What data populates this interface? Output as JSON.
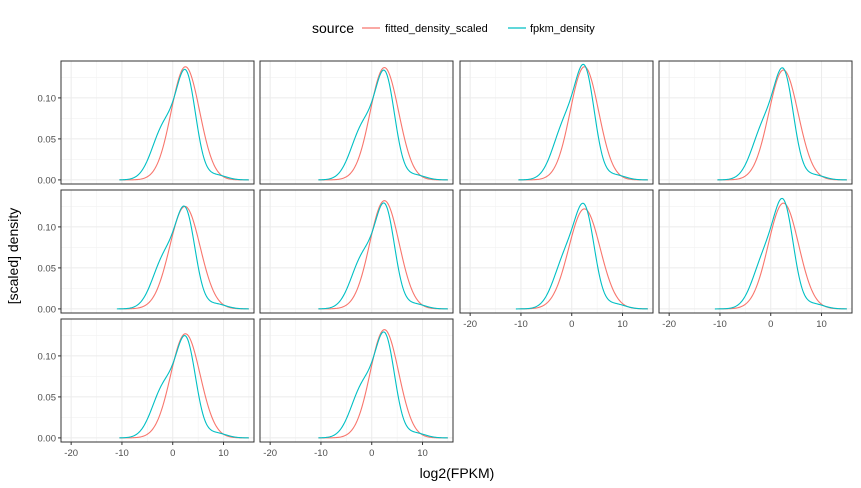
{
  "chart_data": {
    "type": "line",
    "layout": "facet-grid",
    "xlabel": "log2(FPKM)",
    "ylabel": "[scaled] density",
    "xlim": [
      -22,
      16
    ],
    "ylim": [
      -0.005,
      0.145
    ],
    "x_ticks": [
      -20,
      -10,
      0,
      10
    ],
    "x_tick_labels": [
      "-20",
      "-10",
      "0",
      "10"
    ],
    "y_ticks": [
      0.0,
      0.05,
      0.1
    ],
    "y_tick_labels": [
      "0.00",
      "0.05",
      "0.10"
    ],
    "grid": true,
    "legend": {
      "title": "source",
      "position": "top",
      "entries": [
        {
          "label": "fitted_density_scaled",
          "color": "#F8766D"
        },
        {
          "label": "fpkm_density",
          "color": "#00BFC4"
        }
      ]
    },
    "facets": [
      {
        "peak_x": 2.5,
        "peak_y": 0.138,
        "fitted_sd": 2.8,
        "fpkm_shoulder_x": -1.6,
        "fpkm_shoulder_y": 0.083,
        "fpkm_start_x": -10.5
      },
      {
        "peak_x": 2.5,
        "peak_y": 0.137,
        "fitted_sd": 2.8,
        "fpkm_shoulder_x": -1.6,
        "fpkm_shoulder_y": 0.083,
        "fpkm_start_x": -10.5
      },
      {
        "peak_x": 2.5,
        "peak_y": 0.138,
        "fitted_sd": 2.8,
        "fpkm_shoulder_x": -1.2,
        "fpkm_shoulder_y": 0.087,
        "fpkm_start_x": -10.5
      },
      {
        "peak_x": 2.5,
        "peak_y": 0.134,
        "fitted_sd": 2.9,
        "fpkm_shoulder_x": -1.2,
        "fpkm_shoulder_y": 0.084,
        "fpkm_start_x": -10.5
      },
      {
        "peak_x": 2.4,
        "peak_y": 0.125,
        "fitted_sd": 3.0,
        "fpkm_shoulder_x": -1.5,
        "fpkm_shoulder_y": 0.08,
        "fpkm_start_x": -11.0
      },
      {
        "peak_x": 2.5,
        "peak_y": 0.132,
        "fitted_sd": 2.9,
        "fpkm_shoulder_x": -1.6,
        "fpkm_shoulder_y": 0.081,
        "fpkm_start_x": -10.5
      },
      {
        "peak_x": 2.5,
        "peak_y": 0.122,
        "fitted_sd": 3.1,
        "fpkm_shoulder_x": -1.0,
        "fpkm_shoulder_y": 0.082,
        "fpkm_start_x": -11.0
      },
      {
        "peak_x": 2.5,
        "peak_y": 0.129,
        "fitted_sd": 3.0,
        "fpkm_shoulder_x": -1.0,
        "fpkm_shoulder_y": 0.082,
        "fpkm_start_x": -11.0
      },
      {
        "peak_x": 2.5,
        "peak_y": 0.127,
        "fitted_sd": 2.9,
        "fpkm_shoulder_x": -1.6,
        "fpkm_shoulder_y": 0.08,
        "fpkm_start_x": -10.5
      },
      {
        "peak_x": 2.5,
        "peak_y": 0.132,
        "fitted_sd": 2.8,
        "fpkm_shoulder_x": -1.6,
        "fpkm_shoulder_y": 0.081,
        "fpkm_start_x": -10.5
      }
    ]
  }
}
